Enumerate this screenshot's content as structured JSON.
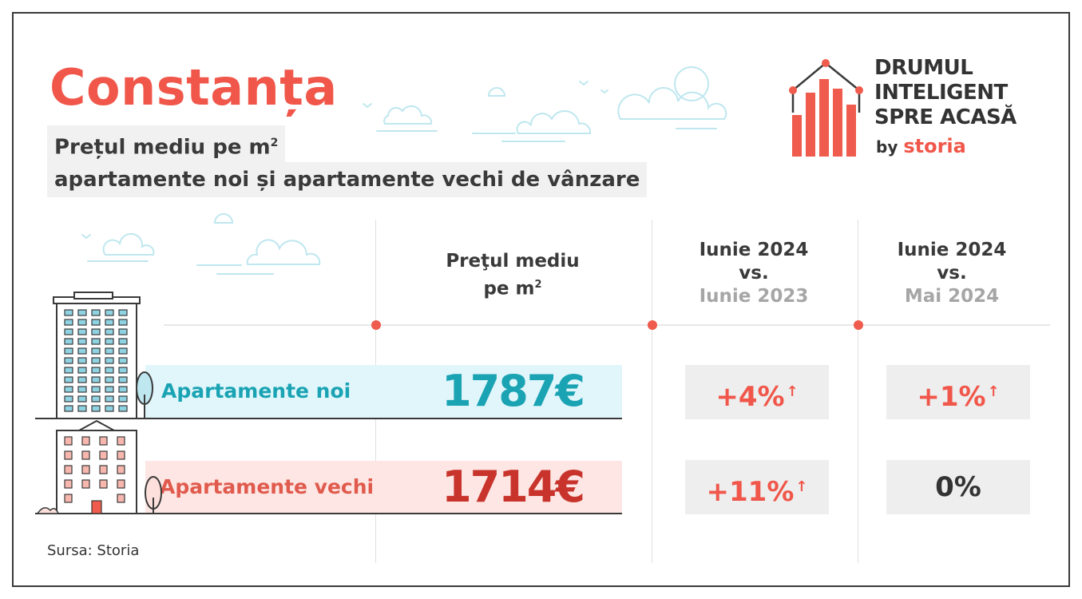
{
  "header": {
    "city": "Constanța",
    "subtitle_line1": "Prețul mediu pe m",
    "subtitle_line1_sup": "2",
    "subtitle_line2": "apartamente noi și apartamente vechi de vânzare"
  },
  "brand": {
    "line1": "DRUMUL",
    "line2": "INTELIGENT",
    "line3": "SPRE ACASĂ",
    "by": "by",
    "name": "storia"
  },
  "columns": {
    "price_line1": "Preţul mediu",
    "price_line2": "pe m",
    "price_sup": "2",
    "yoy_current": "Iunie 2024",
    "yoy_vs": "vs.",
    "yoy_previous": "Iunie 2023",
    "mom_current": "Iunie 2024",
    "mom_vs": "vs.",
    "mom_previous": "Mai 2024"
  },
  "rows": [
    {
      "label": "Apartamente noi",
      "price": "1787€",
      "yoy_change": "+4%",
      "mom_change": "+1%",
      "label_color": "#1aa3b3",
      "price_color": "#1aa3b3"
    },
    {
      "label": "Apartamente vechi",
      "price": "1714€",
      "yoy_change": "+11%",
      "mom_change": "0%",
      "label_color": "#e05a4d",
      "price_color": "#c8342c"
    }
  ],
  "arrow_glyph": "↑",
  "source": "Sursa: Storia",
  "colors": {
    "accent": "#f0574a",
    "teal": "#1aa3b3",
    "dark_red": "#c8342c",
    "new_band": "#e0f6fb",
    "old_band": "#fde6e3",
    "change_positive": "#f0574a",
    "change_neutral": "#333333"
  },
  "icons": [
    "logo-house-chart-icon",
    "apartment-building-new-icon",
    "apartment-building-old-icon",
    "tree-icon",
    "cloud-icon",
    "bird-icon",
    "up-arrow-icon"
  ]
}
